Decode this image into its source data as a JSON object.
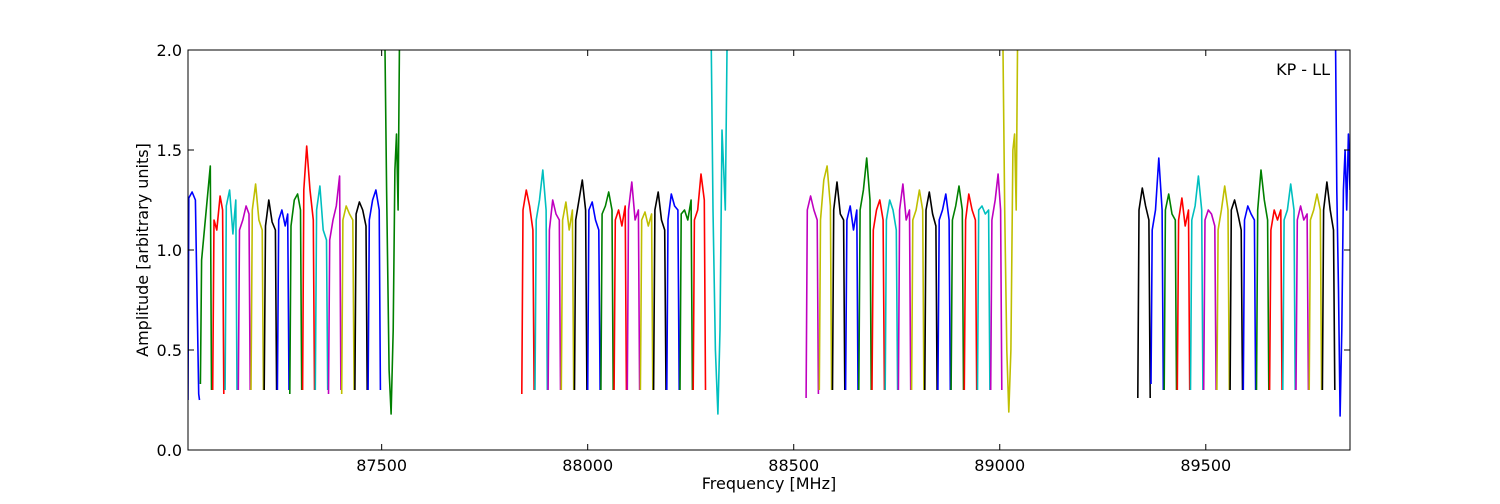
{
  "chart_data": {
    "type": "line",
    "title": "",
    "xlabel": "Frequency [MHz]",
    "ylabel": "Amplitude [arbitrary units]",
    "annotation": "KP - LL",
    "xlim": [
      87030,
      89850
    ],
    "ylim": [
      0.0,
      2.0
    ],
    "x_ticks": [
      87500,
      88000,
      88500,
      89000,
      89500
    ],
    "x_tick_labels": [
      "87500",
      "88000",
      "88500",
      "89000",
      "89500"
    ],
    "y_ticks": [
      0.0,
      0.5,
      1.0,
      1.5,
      2.0
    ],
    "y_tick_labels": [
      "0.0",
      "0.5",
      "1.0",
      "1.5",
      "2.0"
    ],
    "grid": false,
    "legend": "none",
    "color_cycle": [
      "#0000ff",
      "#008000",
      "#ff0000",
      "#00bfbf",
      "#bf00bf",
      "#bfbf00",
      "#000000"
    ],
    "series": [
      {
        "color": "#0000ff",
        "x": [
          87030,
          87032,
          87040,
          87048,
          87056,
          87058
        ],
        "y": [
          0.25,
          1.26,
          1.29,
          1.25,
          0.28,
          0.25
        ]
      },
      {
        "color": "#008000",
        "x": [
          87060,
          87063,
          87072,
          87084,
          87087
        ],
        "y": [
          0.33,
          0.95,
          1.15,
          1.42,
          0.3
        ]
      },
      {
        "color": "#ff0000",
        "x": [
          87090,
          87093,
          87100,
          87108,
          87114,
          87117
        ],
        "y": [
          0.3,
          1.15,
          1.1,
          1.27,
          1.2,
          0.28
        ]
      },
      {
        "color": "#00bfbf",
        "x": [
          87120,
          87123,
          87131,
          87139,
          87146,
          87149
        ],
        "y": [
          0.3,
          1.22,
          1.3,
          1.08,
          1.25,
          0.3
        ]
      },
      {
        "color": "#bf00bf",
        "x": [
          87152,
          87155,
          87163,
          87171,
          87178,
          87181
        ],
        "y": [
          0.3,
          1.1,
          1.15,
          1.22,
          1.18,
          0.3
        ]
      },
      {
        "color": "#bfbf00",
        "x": [
          87183,
          87186,
          87194,
          87202,
          87210,
          87213
        ],
        "y": [
          0.3,
          1.2,
          1.33,
          1.15,
          1.1,
          0.3
        ]
      },
      {
        "color": "#000000",
        "x": [
          87215,
          87218,
          87226,
          87234,
          87242,
          87245
        ],
        "y": [
          0.3,
          1.12,
          1.25,
          1.14,
          1.1,
          0.3
        ]
      },
      {
        "color": "#0000ff",
        "x": [
          87247,
          87250,
          87258,
          87266,
          87272,
          87275
        ],
        "y": [
          0.3,
          1.15,
          1.2,
          1.12,
          1.18,
          0.3
        ]
      },
      {
        "color": "#008000",
        "x": [
          87277,
          87280,
          87288,
          87296,
          87303,
          87306
        ],
        "y": [
          0.28,
          1.12,
          1.25,
          1.28,
          1.2,
          0.3
        ]
      },
      {
        "color": "#ff0000",
        "x": [
          87308,
          87311,
          87318,
          87326,
          87334,
          87337
        ],
        "y": [
          0.3,
          1.3,
          1.52,
          1.3,
          1.15,
          0.3
        ]
      },
      {
        "color": "#00bfbf",
        "x": [
          87339,
          87342,
          87350,
          87358,
          87366,
          87369
        ],
        "y": [
          0.3,
          1.2,
          1.32,
          1.1,
          1.05,
          0.3
        ]
      },
      {
        "color": "#bf00bf",
        "x": [
          87371,
          87374,
          87382,
          87390,
          87398,
          87401
        ],
        "y": [
          0.28,
          1.05,
          1.15,
          1.22,
          1.37,
          0.3
        ]
      },
      {
        "color": "#bfbf00",
        "x": [
          87403,
          87406,
          87414,
          87422,
          87430,
          87433
        ],
        "y": [
          0.28,
          1.15,
          1.22,
          1.18,
          1.15,
          0.3
        ]
      },
      {
        "color": "#000000",
        "x": [
          87435,
          87438,
          87446,
          87454,
          87462,
          87465
        ],
        "y": [
          0.3,
          1.18,
          1.24,
          1.2,
          1.12,
          0.3
        ]
      },
      {
        "color": "#0000ff",
        "x": [
          87467,
          87470,
          87478,
          87486,
          87494,
          87497
        ],
        "y": [
          0.3,
          1.15,
          1.25,
          1.3,
          1.2,
          0.3
        ]
      },
      {
        "color": "#008000",
        "x": [
          87508,
          87512,
          87518,
          87523,
          87528,
          87532,
          87536,
          87540,
          87543
        ],
        "y": [
          2.0,
          1.3,
          0.4,
          0.18,
          0.6,
          1.4,
          1.58,
          1.2,
          2.0
        ]
      },
      {
        "color": "#ff0000",
        "x": [
          87840,
          87843,
          87851,
          87859,
          87867,
          87870
        ],
        "y": [
          0.28,
          1.2,
          1.3,
          1.22,
          1.1,
          0.3
        ]
      },
      {
        "color": "#00bfbf",
        "x": [
          87872,
          87875,
          87883,
          87891,
          87899,
          87902
        ],
        "y": [
          0.3,
          1.15,
          1.25,
          1.4,
          1.2,
          0.3
        ]
      },
      {
        "color": "#bf00bf",
        "x": [
          87904,
          87907,
          87915,
          87923,
          87931,
          87934
        ],
        "y": [
          0.3,
          1.1,
          1.25,
          1.18,
          1.15,
          0.3
        ]
      },
      {
        "color": "#bfbf00",
        "x": [
          87936,
          87939,
          87947,
          87955,
          87963,
          87966
        ],
        "y": [
          0.3,
          1.15,
          1.24,
          1.1,
          1.2,
          0.3
        ]
      },
      {
        "color": "#000000",
        "x": [
          87968,
          87971,
          87979,
          87987,
          87995,
          87998
        ],
        "y": [
          0.3,
          1.15,
          1.25,
          1.35,
          1.2,
          0.3
        ]
      },
      {
        "color": "#0000ff",
        "x": [
          88000,
          88003,
          88011,
          88019,
          88027,
          88030
        ],
        "y": [
          0.3,
          1.2,
          1.24,
          1.15,
          1.1,
          0.3
        ]
      },
      {
        "color": "#008000",
        "x": [
          88032,
          88035,
          88043,
          88051,
          88059,
          88062
        ],
        "y": [
          0.3,
          1.18,
          1.22,
          1.29,
          1.2,
          0.3
        ]
      },
      {
        "color": "#ff0000",
        "x": [
          88064,
          88067,
          88075,
          88083,
          88091,
          88094
        ],
        "y": [
          0.3,
          1.15,
          1.2,
          1.12,
          1.22,
          0.3
        ]
      },
      {
        "color": "#bf00bf",
        "x": [
          88096,
          88099,
          88107,
          88115,
          88123,
          88126
        ],
        "y": [
          0.3,
          1.2,
          1.34,
          1.15,
          1.2,
          0.3
        ]
      },
      {
        "color": "#bfbf00",
        "x": [
          88128,
          88131,
          88139,
          88147,
          88155,
          88158
        ],
        "y": [
          0.3,
          1.15,
          1.19,
          1.12,
          1.18,
          0.3
        ]
      },
      {
        "color": "#000000",
        "x": [
          88160,
          88163,
          88171,
          88179,
          88187,
          88190
        ],
        "y": [
          0.3,
          1.2,
          1.29,
          1.15,
          1.1,
          0.3
        ]
      },
      {
        "color": "#0000ff",
        "x": [
          88192,
          88195,
          88203,
          88211,
          88219,
          88222
        ],
        "y": [
          0.3,
          1.15,
          1.28,
          1.22,
          1.2,
          0.3
        ]
      },
      {
        "color": "#008000",
        "x": [
          88224,
          88227,
          88235,
          88243,
          88251,
          88254
        ],
        "y": [
          0.3,
          1.18,
          1.2,
          1.15,
          1.25,
          0.3
        ]
      },
      {
        "color": "#ff0000",
        "x": [
          88256,
          88259,
          88267,
          88275,
          88283,
          88286
        ],
        "y": [
          0.3,
          1.15,
          1.2,
          1.38,
          1.25,
          0.3
        ]
      },
      {
        "color": "#00bfbf",
        "x": [
          88300,
          88304,
          88310,
          88316,
          88321,
          88326,
          88330,
          88334,
          88338
        ],
        "y": [
          2.0,
          1.2,
          0.5,
          0.18,
          0.6,
          1.6,
          1.4,
          1.2,
          2.0
        ]
      },
      {
        "color": "#bf00bf",
        "x": [
          88530,
          88533,
          88541,
          88549,
          88557,
          88560
        ],
        "y": [
          0.26,
          1.2,
          1.27,
          1.2,
          1.15,
          0.28
        ]
      },
      {
        "color": "#bfbf00",
        "x": [
          88562,
          88565,
          88573,
          88581,
          88589,
          88592
        ],
        "y": [
          0.3,
          1.15,
          1.35,
          1.42,
          1.22,
          0.3
        ]
      },
      {
        "color": "#000000",
        "x": [
          88594,
          88597,
          88605,
          88613,
          88621,
          88624
        ],
        "y": [
          0.3,
          1.2,
          1.34,
          1.18,
          1.15,
          0.3
        ]
      },
      {
        "color": "#0000ff",
        "x": [
          88626,
          88629,
          88637,
          88645,
          88653,
          88656
        ],
        "y": [
          0.3,
          1.15,
          1.22,
          1.1,
          1.2,
          0.3
        ]
      },
      {
        "color": "#008000",
        "x": [
          88658,
          88661,
          88669,
          88677,
          88685,
          88688
        ],
        "y": [
          0.3,
          1.2,
          1.3,
          1.46,
          1.25,
          0.3
        ]
      },
      {
        "color": "#ff0000",
        "x": [
          88690,
          88693,
          88701,
          88709,
          88717,
          88720
        ],
        "y": [
          0.3,
          1.1,
          1.2,
          1.25,
          1.15,
          0.3
        ]
      },
      {
        "color": "#00bfbf",
        "x": [
          88722,
          88725,
          88733,
          88741,
          88749,
          88752
        ],
        "y": [
          0.3,
          1.15,
          1.25,
          1.2,
          1.1,
          0.3
        ]
      },
      {
        "color": "#bf00bf",
        "x": [
          88754,
          88757,
          88765,
          88773,
          88781,
          88784
        ],
        "y": [
          0.3,
          1.2,
          1.33,
          1.15,
          1.2,
          0.3
        ]
      },
      {
        "color": "#bfbf00",
        "x": [
          88786,
          88789,
          88797,
          88805,
          88813,
          88816
        ],
        "y": [
          0.3,
          1.15,
          1.2,
          1.3,
          1.2,
          0.3
        ]
      },
      {
        "color": "#000000",
        "x": [
          88818,
          88821,
          88829,
          88837,
          88845,
          88848
        ],
        "y": [
          0.3,
          1.2,
          1.29,
          1.18,
          1.12,
          0.3
        ]
      },
      {
        "color": "#0000ff",
        "x": [
          88850,
          88853,
          88861,
          88869,
          88877,
          88880
        ],
        "y": [
          0.3,
          1.15,
          1.2,
          1.28,
          1.15,
          0.3
        ]
      },
      {
        "color": "#008000",
        "x": [
          88882,
          88885,
          88893,
          88901,
          88909,
          88912
        ],
        "y": [
          0.3,
          1.15,
          1.22,
          1.32,
          1.2,
          0.3
        ]
      },
      {
        "color": "#ff0000",
        "x": [
          88914,
          88917,
          88925,
          88933,
          88941,
          88944
        ],
        "y": [
          0.3,
          1.15,
          1.28,
          1.2,
          1.15,
          0.3
        ]
      },
      {
        "color": "#00bfbf",
        "x": [
          88946,
          88949,
          88957,
          88965,
          88973,
          88976
        ],
        "y": [
          0.3,
          1.2,
          1.22,
          1.18,
          1.2,
          0.3
        ]
      },
      {
        "color": "#bf00bf",
        "x": [
          88978,
          88981,
          88989,
          88996,
          89002,
          89005
        ],
        "y": [
          0.3,
          1.15,
          1.25,
          1.38,
          1.2,
          0.3
        ]
      },
      {
        "color": "#bfbf00",
        "x": [
          89008,
          89012,
          89017,
          89022,
          89027,
          89032,
          89036,
          89040,
          89043
        ],
        "y": [
          2.0,
          1.2,
          0.5,
          0.19,
          0.5,
          1.5,
          1.58,
          1.2,
          2.0
        ]
      },
      {
        "color": "#000000",
        "x": [
          89335,
          89338,
          89346,
          89354,
          89362,
          89365
        ],
        "y": [
          0.26,
          1.2,
          1.31,
          1.22,
          1.15,
          0.26
        ]
      },
      {
        "color": "#0000ff",
        "x": [
          89367,
          89370,
          89378,
          89386,
          89394,
          89397
        ],
        "y": [
          0.33,
          1.1,
          1.2,
          1.46,
          1.2,
          0.3
        ]
      },
      {
        "color": "#008000",
        "x": [
          89399,
          89402,
          89410,
          89418,
          89426,
          89429
        ],
        "y": [
          0.3,
          1.2,
          1.28,
          1.18,
          1.15,
          0.3
        ]
      },
      {
        "color": "#ff0000",
        "x": [
          89431,
          89434,
          89442,
          89450,
          89458,
          89461
        ],
        "y": [
          0.3,
          1.15,
          1.26,
          1.12,
          1.2,
          0.3
        ]
      },
      {
        "color": "#00bfbf",
        "x": [
          89463,
          89466,
          89474,
          89482,
          89490,
          89493
        ],
        "y": [
          0.3,
          1.15,
          1.22,
          1.37,
          1.2,
          0.3
        ]
      },
      {
        "color": "#bf00bf",
        "x": [
          89495,
          89498,
          89506,
          89514,
          89522,
          89525
        ],
        "y": [
          0.3,
          1.15,
          1.2,
          1.18,
          1.12,
          0.3
        ]
      },
      {
        "color": "#bfbf00",
        "x": [
          89527,
          89530,
          89538,
          89546,
          89554,
          89557
        ],
        "y": [
          0.3,
          1.1,
          1.2,
          1.32,
          1.2,
          0.3
        ]
      },
      {
        "color": "#000000",
        "x": [
          89559,
          89562,
          89570,
          89578,
          89586,
          89589
        ],
        "y": [
          0.3,
          1.2,
          1.25,
          1.18,
          1.1,
          0.3
        ]
      },
      {
        "color": "#0000ff",
        "x": [
          89591,
          89594,
          89602,
          89610,
          89618,
          89621
        ],
        "y": [
          0.3,
          1.15,
          1.22,
          1.18,
          1.15,
          0.3
        ]
      },
      {
        "color": "#008000",
        "x": [
          89623,
          89626,
          89634,
          89642,
          89650,
          89653
        ],
        "y": [
          0.3,
          1.2,
          1.4,
          1.25,
          1.15,
          0.3
        ]
      },
      {
        "color": "#ff0000",
        "x": [
          89655,
          89658,
          89666,
          89674,
          89682,
          89685
        ],
        "y": [
          0.3,
          1.1,
          1.2,
          1.15,
          1.2,
          0.3
        ]
      },
      {
        "color": "#00bfbf",
        "x": [
          89687,
          89690,
          89698,
          89706,
          89714,
          89717
        ],
        "y": [
          0.3,
          1.15,
          1.2,
          1.33,
          1.2,
          0.3
        ]
      },
      {
        "color": "#bf00bf",
        "x": [
          89719,
          89722,
          89730,
          89738,
          89746,
          89749
        ],
        "y": [
          0.3,
          1.15,
          1.22,
          1.15,
          1.18,
          0.3
        ]
      },
      {
        "color": "#bfbf00",
        "x": [
          89751,
          89754,
          89762,
          89770,
          89778,
          89781
        ],
        "y": [
          0.3,
          1.15,
          1.2,
          1.28,
          1.2,
          0.3
        ]
      },
      {
        "color": "#000000",
        "x": [
          89783,
          89786,
          89794,
          89802,
          89810,
          89813
        ],
        "y": [
          0.3,
          1.2,
          1.34,
          1.2,
          1.1,
          0.3
        ]
      },
      {
        "color": "#0000ff",
        "x": [
          89815,
          89818,
          89822,
          89826,
          89830,
          89834,
          89838,
          89842,
          89846,
          89850
        ],
        "y": [
          2.0,
          1.3,
          0.8,
          0.17,
          0.6,
          1.3,
          1.5,
          1.2,
          1.58,
          1.3
        ]
      }
    ]
  }
}
